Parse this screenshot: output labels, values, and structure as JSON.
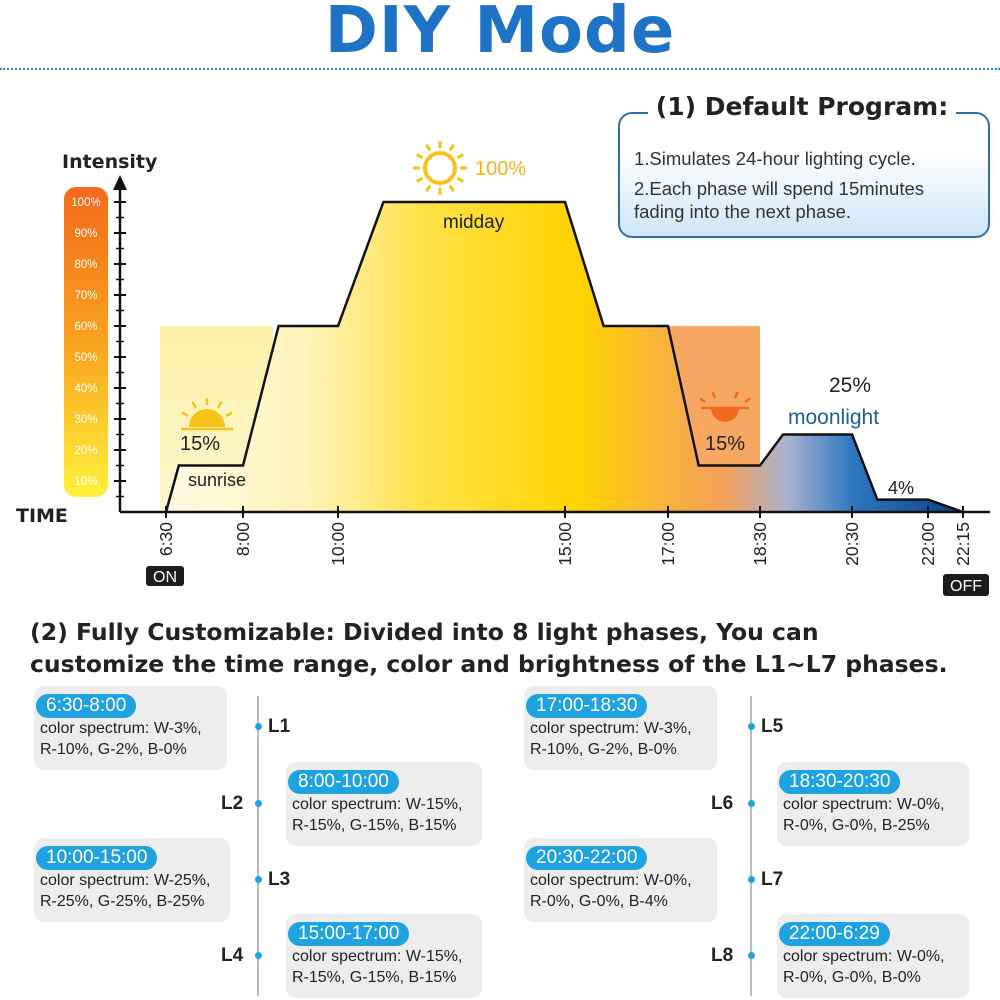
{
  "title": "DIY Mode",
  "default_program": {
    "heading": "(1) Default Program:",
    "lines": [
      "1.Simulates 24-hour lighting cycle.",
      "2.Each phase will spend 15minutes",
      "fading into the next phase."
    ]
  },
  "chart_data": {
    "type": "area",
    "ylabel": "Intensity",
    "xlabel": "TIME",
    "yticks": [
      "100%",
      "90%",
      "80%",
      "70%",
      "60%",
      "50%",
      "40%",
      "30%",
      "20%",
      "10%"
    ],
    "x": [
      "6:30",
      "8:00",
      "10:00",
      "15:00",
      "17:00",
      "18:30",
      "20:30",
      "22:00",
      "22:15"
    ],
    "on_label": "ON",
    "off_label": "OFF",
    "points": [
      {
        "time": "6:30",
        "intensity": 0
      },
      {
        "time": "6:45",
        "intensity": 15
      },
      {
        "time": "8:00",
        "intensity": 15
      },
      {
        "time": "8:45",
        "intensity": 60
      },
      {
        "time": "10:00",
        "intensity": 60
      },
      {
        "time": "11:00",
        "intensity": 100
      },
      {
        "time": "15:00",
        "intensity": 100
      },
      {
        "time": "15:45",
        "intensity": 60
      },
      {
        "time": "17:00",
        "intensity": 60
      },
      {
        "time": "17:30",
        "intensity": 15
      },
      {
        "time": "18:30",
        "intensity": 15
      },
      {
        "time": "19:00",
        "intensity": 25
      },
      {
        "time": "20:30",
        "intensity": 25
      },
      {
        "time": "21:00",
        "intensity": 4
      },
      {
        "time": "22:00",
        "intensity": 4
      },
      {
        "time": "22:15",
        "intensity": 0
      }
    ],
    "annotations": {
      "sunrise_pct": "15%",
      "sunrise_label": "sunrise",
      "midday_pct": "100%",
      "midday_label": "midday",
      "sunset_pct": "15%",
      "moon_pct": "25%",
      "moon_label": "moonlight",
      "night_pct": "4%"
    },
    "colors": {
      "line": "#111111",
      "bar_top": "#f26a1b",
      "bar_bottom": "#ffef2a",
      "midday": "#ffd500",
      "evening": "#f28a2c",
      "night": "#1d5ea8"
    }
  },
  "customizable": {
    "heading_line1": "(2) Fully Customizable: Divided into 8 light phases, You can",
    "heading_line2": "customize the time range, color and brightness of the L1~L7 phases."
  },
  "phases": [
    {
      "label": "L1",
      "time": "6:30-8:00",
      "spec1": "color spectrum: W-3%,",
      "spec2": "R-10%, G-2%, B-0%"
    },
    {
      "label": "L2",
      "time": "8:00-10:00",
      "spec1": "color spectrum: W-15%,",
      "spec2": "R-15%, G-15%, B-15%"
    },
    {
      "label": "L3",
      "time": "10:00-15:00",
      "spec1": "color spectrum: W-25%,",
      "spec2": "R-25%, G-25%, B-25%"
    },
    {
      "label": "L4",
      "time": "15:00-17:00",
      "spec1": "color spectrum: W-15%,",
      "spec2": "R-15%, G-15%, B-15%"
    },
    {
      "label": "L5",
      "time": "17:00-18:30",
      "spec1": "color spectrum: W-3%,",
      "spec2": "R-10%, G-2%, B-0%"
    },
    {
      "label": "L6",
      "time": "18:30-20:30",
      "spec1": "color spectrum: W-0%,",
      "spec2": "R-0%, G-0%, B-25%"
    },
    {
      "label": "L7",
      "time": "20:30-22:00",
      "spec1": "color spectrum: W-0%,",
      "spec2": "R-0%, G-0%, B-4%"
    },
    {
      "label": "L8",
      "time": "22:00-6:29",
      "spec1": "color spectrum: W-0%,",
      "spec2": "R-0%, G-0%, B-0%"
    }
  ]
}
